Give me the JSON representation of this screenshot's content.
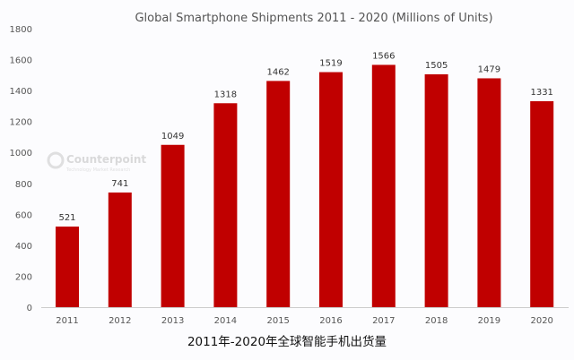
{
  "chart_data": {
    "type": "bar",
    "title": "Global Smartphone Shipments 2011 - 2020 (Millions of Units)",
    "caption": "2011年-2020年全球智能手机出货量",
    "categories": [
      "2011",
      "2012",
      "2013",
      "2014",
      "2015",
      "2016",
      "2017",
      "2018",
      "2019",
      "2020"
    ],
    "values": [
      521,
      741,
      1049,
      1318,
      1462,
      1519,
      1566,
      1505,
      1479,
      1331
    ],
    "ylim": [
      0,
      1800
    ],
    "yticks": [
      0,
      200,
      400,
      600,
      800,
      1000,
      1200,
      1400,
      1600,
      1800
    ],
    "grid": false,
    "bar_color": "#c00000",
    "watermark": {
      "brand": "Counterpoint",
      "tagline": "Technology Market Research"
    }
  }
}
